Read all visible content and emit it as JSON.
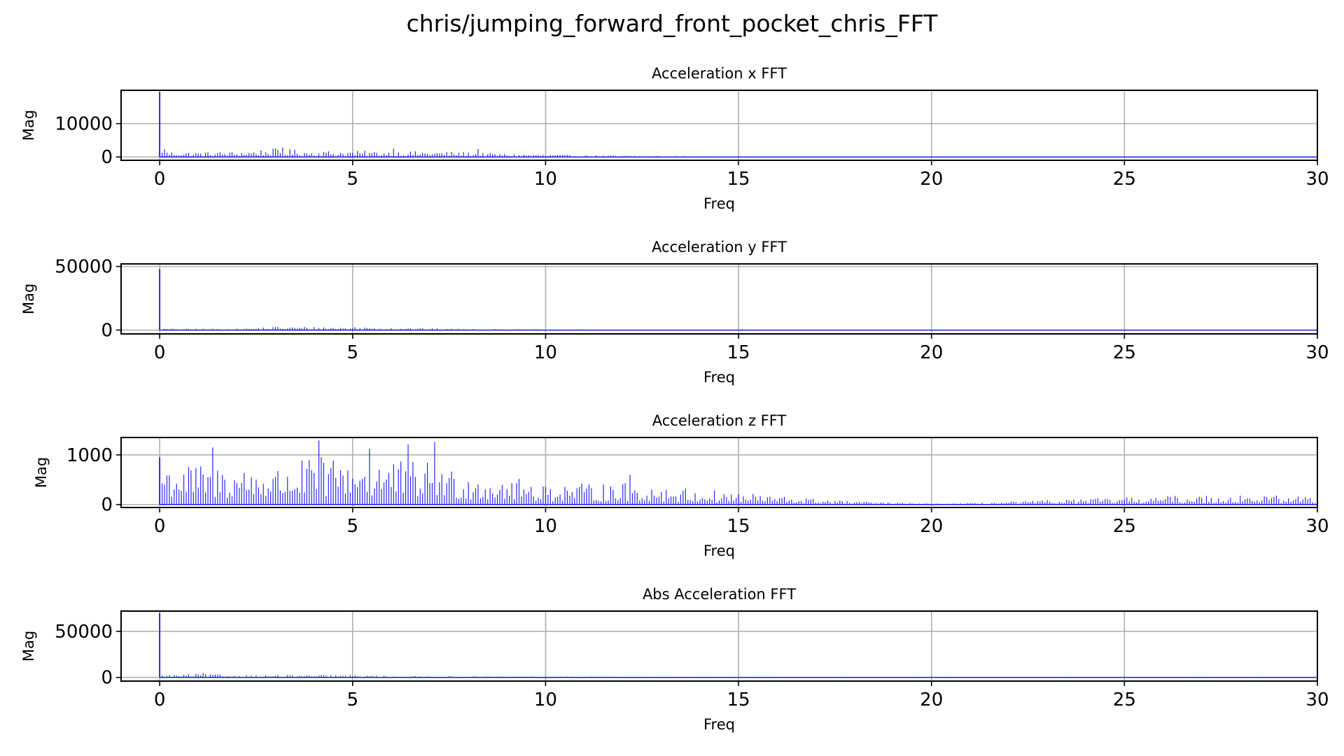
{
  "figure": {
    "title": "chris/jumping_forward_front_pocket_chris_FFT"
  },
  "chart_data": [
    {
      "type": "bar",
      "title": "Acceleration x FFT",
      "xlabel": "Freq",
      "ylabel": "Mag",
      "xlim": [
        -1,
        30
      ],
      "ylim": [
        -1000,
        20000
      ],
      "xticks": [
        0,
        5,
        10,
        15,
        20,
        25,
        30
      ],
      "yticks": [
        0,
        10000
      ],
      "grid": true,
      "series_color": "#0000ff",
      "spectrum": {
        "sample_spacing": 0.0625,
        "dc_value": 19500,
        "envelope": [
          [
            0.1,
            1800
          ],
          [
            1,
            1500
          ],
          [
            2,
            1700
          ],
          [
            3,
            2600
          ],
          [
            4,
            1900
          ],
          [
            5,
            1900
          ],
          [
            6,
            1700
          ],
          [
            7,
            1800
          ],
          [
            8,
            1500
          ],
          [
            9,
            1000
          ],
          [
            10,
            800
          ],
          [
            11,
            500
          ],
          [
            12,
            420
          ],
          [
            13,
            300
          ],
          [
            14,
            200
          ],
          [
            15,
            120
          ],
          [
            20,
            60
          ],
          [
            30,
            50
          ]
        ],
        "peaks": [
          [
            0.15,
            2300
          ],
          [
            3.2,
            2800
          ],
          [
            6.05,
            2500
          ],
          [
            8.25,
            2400
          ]
        ]
      }
    },
    {
      "type": "bar",
      "title": "Acceleration y FFT",
      "xlabel": "Freq",
      "ylabel": "Mag",
      "xlim": [
        -1,
        30
      ],
      "ylim": [
        -3000,
        52000
      ],
      "xticks": [
        0,
        5,
        10,
        15,
        20,
        25,
        30
      ],
      "yticks": [
        0,
        50000
      ],
      "grid": true,
      "series_color": "#0000ff",
      "spectrum": {
        "sample_spacing": 0.0625,
        "dc_value": 48000,
        "envelope": [
          [
            0.1,
            1200
          ],
          [
            2,
            1100
          ],
          [
            3,
            2800
          ],
          [
            4,
            2600
          ],
          [
            5,
            2700
          ],
          [
            6,
            2300
          ],
          [
            7,
            1400
          ],
          [
            8,
            900
          ],
          [
            10,
            500
          ],
          [
            15,
            200
          ],
          [
            20,
            150
          ],
          [
            30,
            150
          ]
        ],
        "peaks": []
      }
    },
    {
      "type": "bar",
      "title": "Acceleration z FFT",
      "xlabel": "Freq",
      "ylabel": "Mag",
      "xlim": [
        -1,
        30
      ],
      "ylim": [
        -60,
        1350
      ],
      "xticks": [
        0,
        5,
        10,
        15,
        20,
        25,
        30
      ],
      "yticks": [
        0,
        1000
      ],
      "grid": true,
      "series_color": "#0000ff",
      "spectrum": {
        "sample_spacing": 0.0625,
        "dc_value": 950,
        "envelope": [
          [
            0.1,
            900
          ],
          [
            1,
            800
          ],
          [
            2,
            800
          ],
          [
            3,
            750
          ],
          [
            4,
            950
          ],
          [
            5,
            1000
          ],
          [
            6,
            900
          ],
          [
            7,
            850
          ],
          [
            8,
            650
          ],
          [
            9,
            550
          ],
          [
            10,
            450
          ],
          [
            11,
            420
          ],
          [
            12,
            450
          ],
          [
            13,
            380
          ],
          [
            14,
            300
          ],
          [
            15,
            250
          ],
          [
            16,
            180
          ],
          [
            17,
            120
          ],
          [
            18,
            70
          ],
          [
            19,
            40
          ],
          [
            20,
            20
          ],
          [
            21,
            30
          ],
          [
            22,
            60
          ],
          [
            23,
            90
          ],
          [
            24,
            120
          ],
          [
            25,
            140
          ],
          [
            26,
            170
          ],
          [
            27,
            190
          ],
          [
            28,
            200
          ],
          [
            29,
            190
          ],
          [
            30,
            170
          ]
        ],
        "peaks": [
          [
            1.35,
            1150
          ],
          [
            4.15,
            1290
          ],
          [
            5.45,
            1120
          ],
          [
            6.45,
            1210
          ],
          [
            7.15,
            1260
          ],
          [
            12.2,
            600
          ]
        ]
      }
    },
    {
      "type": "bar",
      "title": "Abs Acceleration FFT",
      "xlabel": "Freq",
      "ylabel": "Mag",
      "xlim": [
        -1,
        30
      ],
      "ylim": [
        -4000,
        72000
      ],
      "xticks": [
        0,
        5,
        10,
        15,
        20,
        25,
        30
      ],
      "yticks": [
        0,
        50000
      ],
      "grid": true,
      "series_color": "#0000ff",
      "spectrum": {
        "sample_spacing": 0.0625,
        "dc_value": 70000,
        "envelope": [
          [
            0.1,
            2500
          ],
          [
            1,
            4000
          ],
          [
            1.5,
            3500
          ],
          [
            2,
            2500
          ],
          [
            3,
            2400
          ],
          [
            4,
            2600
          ],
          [
            5,
            2500
          ],
          [
            6,
            1600
          ],
          [
            8,
            1200
          ],
          [
            10,
            900
          ],
          [
            15,
            500
          ],
          [
            20,
            350
          ],
          [
            30,
            300
          ]
        ],
        "peaks": [
          [
            1.1,
            4800
          ]
        ]
      }
    }
  ]
}
